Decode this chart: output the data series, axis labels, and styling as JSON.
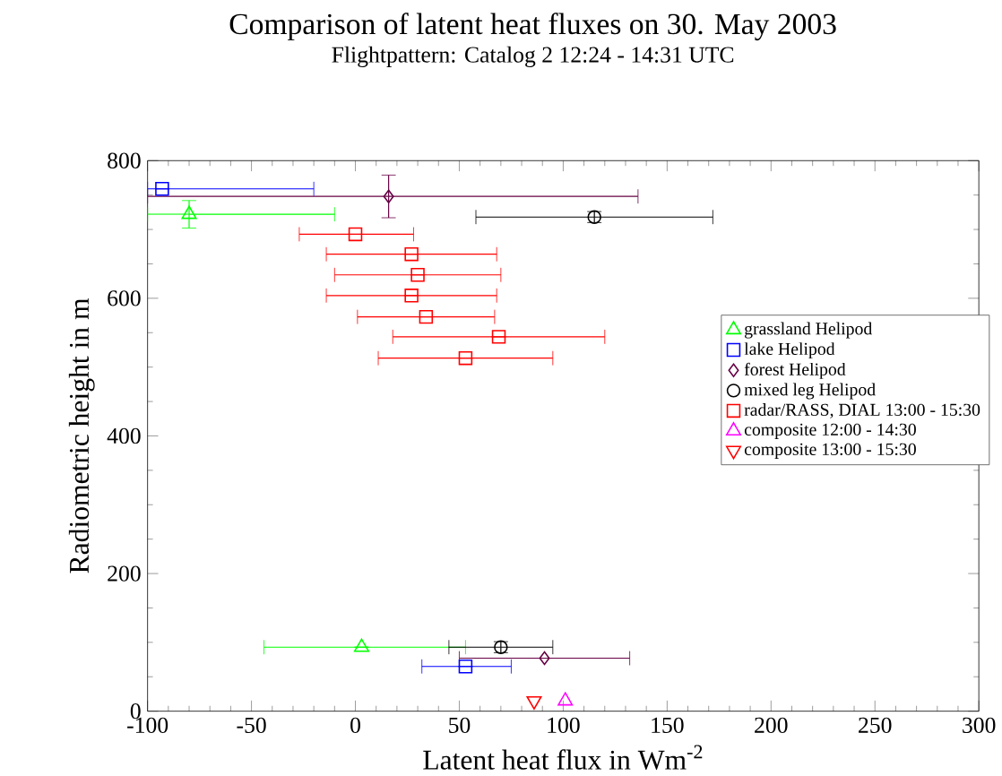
{
  "chart_data": {
    "type": "scatter",
    "title": "Comparison of latent heat fluxes on 30. May 2003",
    "subtitle": "Flightpattern: Catalog 2  12:24 - 14:31 UTC",
    "xlabel": "Latent heat flux in Wm$^{-2}$",
    "ylabel": "Radiometric height in m",
    "xlim": [
      -100,
      300
    ],
    "ylim": [
      0,
      800
    ],
    "xticks": [
      -100,
      -50,
      0,
      50,
      100,
      150,
      200,
      250,
      300
    ],
    "yticks": [
      0,
      200,
      400,
      600,
      800
    ],
    "grid": false,
    "legend": "right",
    "series": [
      {
        "name": "grassland Helipod",
        "color": "#00ff00",
        "marker": "triangle",
        "x": [
          -80,
          3
        ],
        "values": [
          722,
          93
        ],
        "xerrors": [
          [
            -100,
            -10
          ],
          [
            -44,
            53
          ]
        ],
        "errors": [
          20,
          null
        ]
      },
      {
        "name": "lake Helipod",
        "color": "#0000ff",
        "marker": "square",
        "x": [
          -93,
          53
        ],
        "values": [
          759,
          65
        ],
        "xerrors": [
          [
            -100,
            -20
          ],
          [
            32,
            75
          ]
        ],
        "errors": [
          null,
          null
        ]
      },
      {
        "name": "forest Helipod",
        "color": "#660044",
        "marker": "diamond",
        "x": [
          16,
          91
        ],
        "values": [
          748,
          77
        ],
        "xerrors": [
          [
            -100,
            136
          ],
          [
            50,
            132
          ]
        ],
        "errors": [
          31,
          null
        ]
      },
      {
        "name": "mixed leg Helipod",
        "color": "#000000",
        "marker": "circle",
        "x": [
          115,
          70
        ],
        "values": [
          718,
          93
        ],
        "xerrors": [
          [
            58,
            172
          ],
          [
            45,
            95
          ]
        ],
        "errors": [
          8,
          8
        ]
      },
      {
        "name": "radar/RASS, DIAL 13:00 - 15:30",
        "color": "#ff0000",
        "marker": "square",
        "x": [
          0,
          27,
          30,
          27,
          34,
          69,
          53
        ],
        "values": [
          693,
          664,
          634,
          604,
          573,
          544,
          513
        ],
        "xerrors": [
          [
            -27,
            28
          ],
          [
            -14,
            68
          ],
          [
            -10,
            70
          ],
          [
            -14,
            68
          ],
          [
            1,
            67
          ],
          [
            18,
            120
          ],
          [
            11,
            95
          ]
        ]
      },
      {
        "name": "composite 12:00 - 14:30",
        "color": "#ff00ff",
        "marker": "triangle",
        "x": [
          101
        ],
        "values": [
          15
        ]
      },
      {
        "name": "composite 13:00 - 15:30",
        "color": "#ff0000",
        "marker": "triangle_down",
        "x": [
          86
        ],
        "values": [
          15
        ]
      }
    ]
  }
}
